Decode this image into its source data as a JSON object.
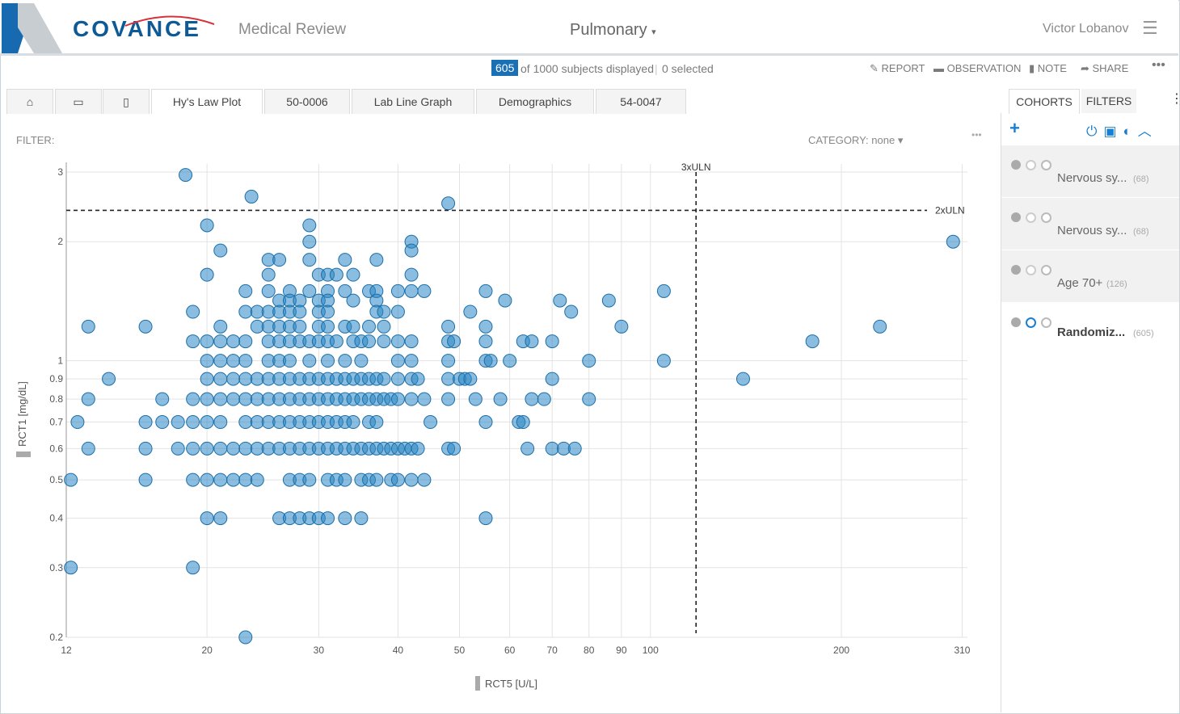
{
  "header": {
    "logo": "COVANCE",
    "app": "Medical Review",
    "study": "Pulmonary",
    "user": "Victor Lobanov"
  },
  "toolbar": {
    "count": "605",
    "count_text": "of 1000 subjects displayed",
    "selected": "0 selected",
    "actions": [
      "REPORT",
      "OBSERVATION",
      "NOTE",
      "SHARE"
    ]
  },
  "tabs": [
    "Hy's Law Plot",
    "50-0006",
    "Lab Line Graph",
    "Demographics",
    "54-0047"
  ],
  "side_tabs": [
    "COHORTS",
    "FILTERS"
  ],
  "filter": {
    "label": "FILTER:",
    "category_label": "CATEGORY:",
    "category_value": "none"
  },
  "cohorts": [
    {
      "name": "Nervous sy...",
      "count": "(68)"
    },
    {
      "name": "Nervous sy...",
      "count": "(68)"
    },
    {
      "name": "Age 70+",
      "count": "(126)"
    },
    {
      "name": "Randomiz...",
      "count": "(605)"
    }
  ],
  "chart_data": {
    "type": "scatter",
    "x_label": "RCT5 [U/L]",
    "y_label": "RCT1 [mg/dL]",
    "log_x": true,
    "log_y": true,
    "grid": true,
    "color": "#2a86c4",
    "xlim": [
      12,
      316
    ],
    "ylim": [
      0.2,
      3
    ],
    "xticks": [
      12,
      20,
      30,
      40,
      50,
      60,
      70,
      80,
      90,
      100,
      200,
      310
    ],
    "yticks": [
      0.2,
      0.3,
      0.4,
      0.5,
      0.6,
      0.7,
      0.8,
      0.9,
      1,
      2,
      3
    ],
    "reference_lines": [
      {
        "axis": "y",
        "value": 2.4,
        "label": "2xULN"
      },
      {
        "axis": "x",
        "value": 118,
        "label": "3xULN"
      }
    ],
    "x": [
      18.5,
      23.5,
      48,
      20,
      29,
      29,
      42,
      300,
      21,
      42,
      25,
      26,
      29,
      33,
      37,
      20,
      25,
      30,
      31,
      32,
      34,
      42,
      23,
      25,
      27,
      29,
      31,
      33,
      36,
      37,
      40,
      42,
      44,
      55,
      105,
      26,
      27,
      28,
      30,
      31,
      34,
      37,
      59,
      72,
      86,
      19,
      23,
      24,
      25,
      26,
      27,
      28,
      30,
      31,
      37,
      38,
      40,
      52,
      75,
      13,
      16,
      21,
      24,
      25,
      26,
      27,
      28,
      30,
      31,
      33,
      34,
      36,
      38,
      48,
      55,
      90,
      230,
      19,
      20,
      21,
      22,
      23,
      25,
      26,
      27,
      28,
      29,
      30,
      31,
      32,
      34,
      35,
      36,
      38,
      40,
      42,
      48,
      49,
      55,
      63,
      65,
      70,
      180,
      20,
      21,
      22,
      23,
      25,
      26,
      27,
      29,
      31,
      33,
      35,
      40,
      42,
      48,
      55,
      56,
      60,
      80,
      105,
      14,
      20,
      21,
      22,
      23,
      24,
      25,
      26,
      27,
      28,
      29,
      30,
      31,
      32,
      33,
      34,
      35,
      36,
      37,
      38,
      40,
      42,
      43,
      48,
      50,
      51,
      52,
      70,
      140,
      13,
      17,
      19,
      20,
      21,
      22,
      23,
      24,
      25,
      26,
      27,
      28,
      29,
      30,
      31,
      32,
      33,
      34,
      35,
      36,
      37,
      38,
      39,
      40,
      42,
      44,
      48,
      53,
      58,
      65,
      68,
      80,
      12.5,
      16,
      17,
      18,
      19,
      20,
      21,
      23,
      24,
      25,
      26,
      27,
      28,
      29,
      30,
      31,
      32,
      33,
      34,
      36,
      37,
      45,
      55,
      62,
      63,
      13,
      16,
      18,
      19,
      20,
      21,
      22,
      23,
      24,
      25,
      26,
      27,
      28,
      29,
      30,
      31,
      32,
      33,
      34,
      35,
      36,
      37,
      38,
      39,
      40,
      41,
      42,
      43,
      48,
      49,
      64,
      70,
      73,
      76,
      12.2,
      16,
      19,
      20,
      21,
      22,
      23,
      24,
      27,
      28,
      29,
      31,
      32,
      33,
      35,
      36,
      37,
      39,
      40,
      42,
      44,
      20,
      21,
      26,
      27,
      28,
      29,
      30,
      31,
      33,
      35,
      55,
      12.2,
      19,
      23
    ],
    "values": [
      2.95,
      2.6,
      2.5,
      2.2,
      2.2,
      2,
      2,
      2,
      1.9,
      1.9,
      1.8,
      1.8,
      1.8,
      1.8,
      1.8,
      1.65,
      1.65,
      1.65,
      1.65,
      1.65,
      1.65,
      1.65,
      1.5,
      1.5,
      1.5,
      1.5,
      1.5,
      1.5,
      1.5,
      1.5,
      1.5,
      1.5,
      1.5,
      1.5,
      1.5,
      1.42,
      1.42,
      1.42,
      1.42,
      1.42,
      1.42,
      1.42,
      1.42,
      1.42,
      1.42,
      1.33,
      1.33,
      1.33,
      1.33,
      1.33,
      1.33,
      1.33,
      1.33,
      1.33,
      1.33,
      1.33,
      1.33,
      1.33,
      1.33,
      1.22,
      1.22,
      1.22,
      1.22,
      1.22,
      1.22,
      1.22,
      1.22,
      1.22,
      1.22,
      1.22,
      1.22,
      1.22,
      1.22,
      1.22,
      1.22,
      1.22,
      1.22,
      1.12,
      1.12,
      1.12,
      1.12,
      1.12,
      1.12,
      1.12,
      1.12,
      1.12,
      1.12,
      1.12,
      1.12,
      1.12,
      1.12,
      1.12,
      1.12,
      1.12,
      1.12,
      1.12,
      1.12,
      1.12,
      1.12,
      1.12,
      1.12,
      1.12,
      1.12,
      1,
      1,
      1,
      1,
      1,
      1,
      1,
      1,
      1,
      1,
      1,
      1,
      1,
      1,
      1,
      1,
      1,
      1,
      1,
      0.9,
      0.9,
      0.9,
      0.9,
      0.9,
      0.9,
      0.9,
      0.9,
      0.9,
      0.9,
      0.9,
      0.9,
      0.9,
      0.9,
      0.9,
      0.9,
      0.9,
      0.9,
      0.9,
      0.9,
      0.9,
      0.9,
      0.9,
      0.9,
      0.9,
      0.9,
      0.9,
      0.9,
      0.9,
      0.8,
      0.8,
      0.8,
      0.8,
      0.8,
      0.8,
      0.8,
      0.8,
      0.8,
      0.8,
      0.8,
      0.8,
      0.8,
      0.8,
      0.8,
      0.8,
      0.8,
      0.8,
      0.8,
      0.8,
      0.8,
      0.8,
      0.8,
      0.8,
      0.8,
      0.8,
      0.8,
      0.8,
      0.8,
      0.8,
      0.8,
      0.8,
      0.7,
      0.7,
      0.7,
      0.7,
      0.7,
      0.7,
      0.7,
      0.7,
      0.7,
      0.7,
      0.7,
      0.7,
      0.7,
      0.7,
      0.7,
      0.7,
      0.7,
      0.7,
      0.7,
      0.7,
      0.7,
      0.7,
      0.7,
      0.7,
      0.7,
      0.6,
      0.6,
      0.6,
      0.6,
      0.6,
      0.6,
      0.6,
      0.6,
      0.6,
      0.6,
      0.6,
      0.6,
      0.6,
      0.6,
      0.6,
      0.6,
      0.6,
      0.6,
      0.6,
      0.6,
      0.6,
      0.6,
      0.6,
      0.6,
      0.6,
      0.6,
      0.6,
      0.6,
      0.6,
      0.6,
      0.6,
      0.6,
      0.6,
      0.6,
      0.5,
      0.5,
      0.5,
      0.5,
      0.5,
      0.5,
      0.5,
      0.5,
      0.5,
      0.5,
      0.5,
      0.5,
      0.5,
      0.5,
      0.5,
      0.5,
      0.5,
      0.5,
      0.5,
      0.5,
      0.5,
      0.4,
      0.4,
      0.4,
      0.4,
      0.4,
      0.4,
      0.4,
      0.4,
      0.4,
      0.4,
      0.4,
      0.3,
      0.3,
      0.2
    ]
  }
}
